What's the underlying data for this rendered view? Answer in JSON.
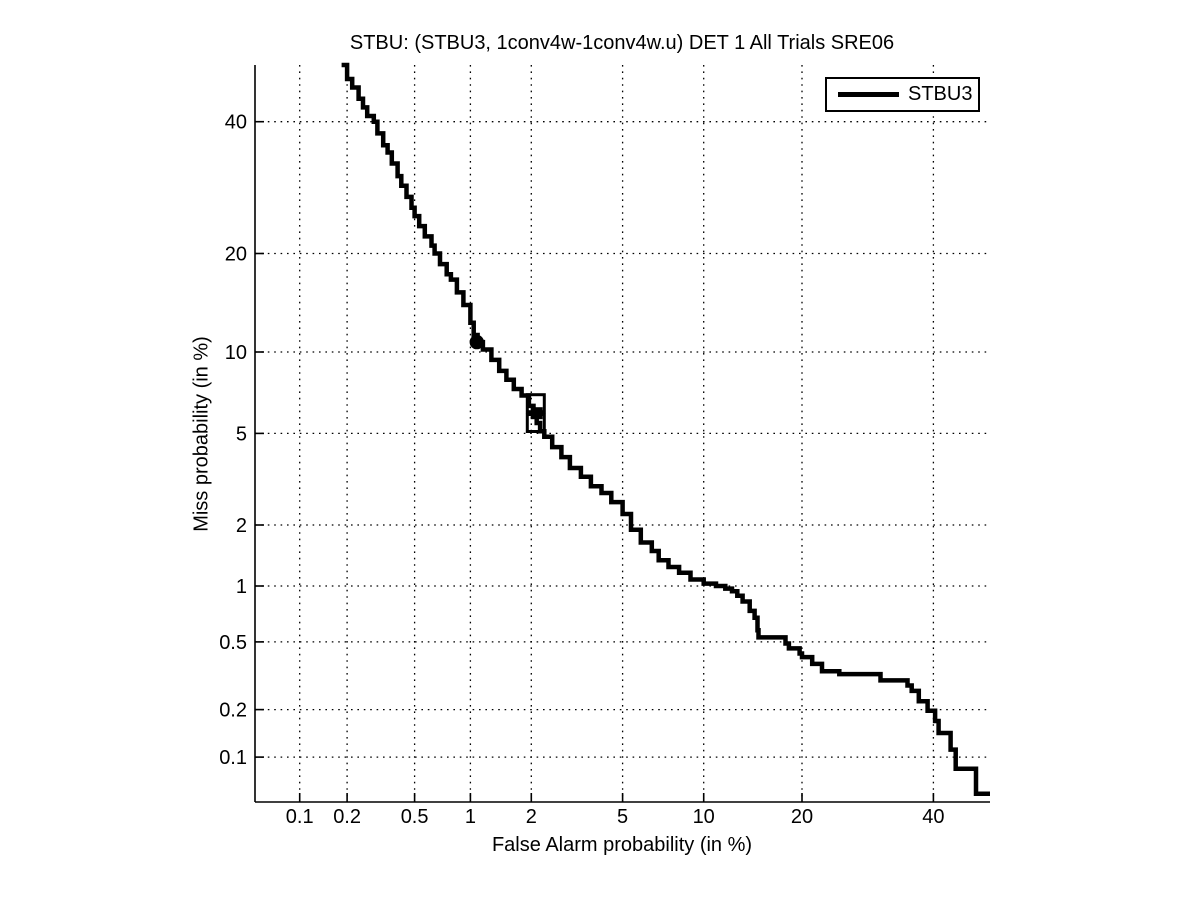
{
  "chart_data": {
    "type": "line",
    "title": "STBU: (STBU3, 1conv4w-1conv4w.u) DET 1 All Trials SRE06",
    "xlabel": "False Alarm probability (in %)",
    "ylabel": "Miss probability (in %)",
    "axis_scale": "normal-deviate (probit) DET scale on both axes",
    "xlim": [
      0.05,
      50
    ],
    "ylim": [
      0.05,
      50
    ],
    "xticks": [
      0.1,
      0.2,
      0.5,
      1,
      2,
      5,
      10,
      20,
      40
    ],
    "yticks": [
      40,
      20,
      10,
      5,
      2,
      1,
      0.5,
      0.2,
      0.1
    ],
    "grid": "dotted",
    "legend_position": "top-right inside",
    "colors": {
      "line": "#000000",
      "grid": "#000000",
      "text": "#000000",
      "background": "#ffffff"
    },
    "series": [
      {
        "name": "STBU3",
        "points_pfa_pmiss_percent": [
          [
            0.185,
            50
          ],
          [
            0.2,
            47.5
          ],
          [
            0.215,
            46
          ],
          [
            0.235,
            44
          ],
          [
            0.25,
            42.5
          ],
          [
            0.265,
            41
          ],
          [
            0.29,
            40
          ],
          [
            0.305,
            38
          ],
          [
            0.33,
            36
          ],
          [
            0.35,
            34.8
          ],
          [
            0.37,
            33
          ],
          [
            0.4,
            31
          ],
          [
            0.42,
            29.5
          ],
          [
            0.45,
            27.8
          ],
          [
            0.48,
            26.2
          ],
          [
            0.5,
            25.0
          ],
          [
            0.53,
            23.6
          ],
          [
            0.57,
            22.2
          ],
          [
            0.62,
            21.0
          ],
          [
            0.645,
            20.0
          ],
          [
            0.69,
            18.7
          ],
          [
            0.75,
            17.5
          ],
          [
            0.79,
            16.9
          ],
          [
            0.85,
            15.5
          ],
          [
            0.92,
            14.2
          ],
          [
            1.0,
            12.5
          ],
          [
            1.04,
            11.4
          ],
          [
            1.09,
            10.8
          ],
          [
            1.16,
            10.2
          ],
          [
            1.28,
            9.4
          ],
          [
            1.4,
            8.6
          ],
          [
            1.52,
            8.0
          ],
          [
            1.65,
            7.4
          ],
          [
            1.8,
            7.0
          ],
          [
            1.95,
            6.4
          ],
          [
            2.05,
            6.0
          ],
          [
            2.12,
            5.5
          ],
          [
            2.2,
            5.1
          ],
          [
            2.3,
            4.85
          ],
          [
            2.5,
            4.4
          ],
          [
            2.75,
            4.0
          ],
          [
            3.0,
            3.6
          ],
          [
            3.35,
            3.3
          ],
          [
            3.7,
            3.0
          ],
          [
            4.1,
            2.8
          ],
          [
            4.5,
            2.55
          ],
          [
            5.0,
            2.25
          ],
          [
            5.4,
            1.9
          ],
          [
            5.9,
            1.65
          ],
          [
            6.5,
            1.5
          ],
          [
            6.9,
            1.35
          ],
          [
            7.5,
            1.25
          ],
          [
            8.2,
            1.17
          ],
          [
            9.0,
            1.08
          ],
          [
            10.0,
            1.03
          ],
          [
            11.0,
            1.0
          ],
          [
            11.8,
            0.97
          ],
          [
            12.4,
            0.94
          ],
          [
            12.9,
            0.89
          ],
          [
            13.4,
            0.83
          ],
          [
            14.1,
            0.74
          ],
          [
            14.6,
            0.68
          ],
          [
            14.9,
            0.58
          ],
          [
            15.0,
            0.53
          ],
          [
            18.0,
            0.49
          ],
          [
            18.4,
            0.46
          ],
          [
            19.7,
            0.43
          ],
          [
            20.0,
            0.41
          ],
          [
            21.3,
            0.375
          ],
          [
            22.6,
            0.34
          ],
          [
            25.0,
            0.327
          ],
          [
            31.2,
            0.3
          ],
          [
            35.6,
            0.28
          ],
          [
            36.3,
            0.26
          ],
          [
            37.5,
            0.225
          ],
          [
            39.0,
            0.197
          ],
          [
            40.3,
            0.17
          ],
          [
            40.9,
            0.143
          ],
          [
            43.0,
            0.112
          ],
          [
            43.9,
            0.084
          ],
          [
            47.5,
            0.057
          ],
          [
            50.3,
            0.057
          ]
        ]
      }
    ],
    "markers": [
      {
        "shape": "filled-circle",
        "pfa": 1.08,
        "pmiss": 10.8
      },
      {
        "shape": "open-square",
        "pfa": 2.1,
        "pmiss": 6.55
      },
      {
        "shape": "filled-square",
        "pfa": 2.12,
        "pmiss": 6.0
      },
      {
        "shape": "open-square",
        "pfa": 2.1,
        "pmiss": 5.5
      }
    ]
  }
}
